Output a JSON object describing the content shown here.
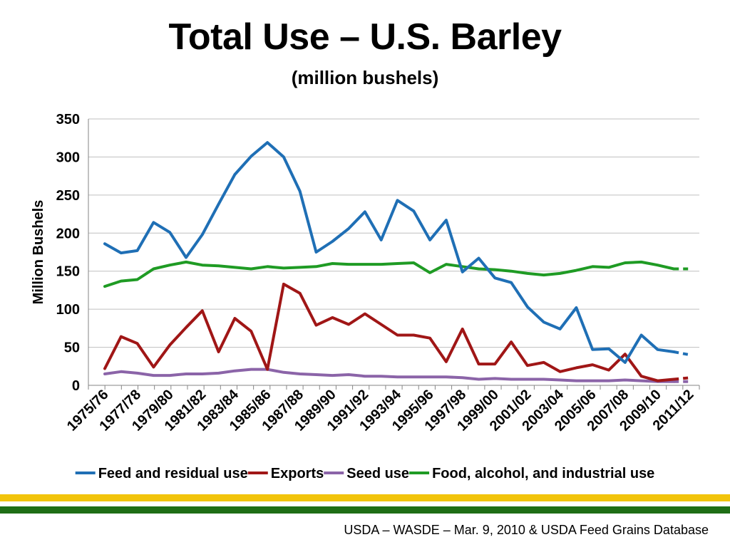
{
  "slide": {
    "title": "Total Use – U.S. Barley",
    "subtitle": "(million bushels)",
    "source": "USDA – WASDE – Mar. 9, 2010 & USDA Feed Grains Database"
  },
  "colors": {
    "feed": "#1f6fb5",
    "exports": "#a01616",
    "seed": "#8b64a8",
    "food": "#1f9b24",
    "grid": "#bfbfbf",
    "band_yellow": "#f2c40b",
    "band_green": "#1f6e16"
  },
  "chart_data": {
    "type": "line",
    "title": "Total Use – U.S. Barley",
    "subtitle": "(million bushels)",
    "xlabel": "",
    "ylabel": "Million Bushels",
    "ylim": [
      0,
      350
    ],
    "yticks": [
      0,
      50,
      100,
      150,
      200,
      250,
      300,
      350
    ],
    "grid": true,
    "legend": "bottom",
    "categories": [
      "1975/76",
      "1976/77",
      "1977/78",
      "1978/79",
      "1979/80",
      "1980/81",
      "1981/82",
      "1982/83",
      "1983/84",
      "1984/85",
      "1985/86",
      "1986/87",
      "1987/88",
      "1988/89",
      "1989/90",
      "1990/91",
      "1991/92",
      "1992/93",
      "1993/94",
      "1994/95",
      "1995/96",
      "1996/97",
      "1997/98",
      "1998/99",
      "1999/00",
      "2000/01",
      "2001/02",
      "2002/03",
      "2003/04",
      "2004/05",
      "2005/06",
      "2006/07",
      "2007/08",
      "2008/09",
      "2009/10",
      "2010/11",
      "2011/12"
    ],
    "tick_labels": [
      "1975/76",
      "1977/78",
      "1979/80",
      "1981/82",
      "1983/84",
      "1985/86",
      "1987/88",
      "1989/90",
      "1991/92",
      "1993/94",
      "1995/96",
      "1997/98",
      "1999/00",
      "2001/02",
      "2003/04",
      "2005/06",
      "2007/08",
      "2009/10",
      "2011/12"
    ],
    "projected_from": "2010/11",
    "series": [
      {
        "name": "Feed and residual use",
        "color": "#1f6fb5",
        "values": [
          186,
          174,
          177,
          214,
          201,
          168,
          198,
          238,
          277,
          301,
          319,
          300,
          255,
          175,
          189,
          206,
          228,
          191,
          243,
          229,
          191,
          217,
          149,
          167,
          141,
          135,
          103,
          83,
          74,
          102,
          47,
          48,
          30,
          66,
          47,
          44,
          40
        ]
      },
      {
        "name": "Exports",
        "color": "#a01616",
        "values": [
          22,
          64,
          55,
          24,
          53,
          76,
          98,
          44,
          88,
          71,
          21,
          133,
          121,
          79,
          89,
          80,
          94,
          80,
          66,
          66,
          62,
          31,
          74,
          28,
          28,
          57,
          26,
          30,
          18,
          23,
          27,
          20,
          41,
          12,
          6,
          8,
          10
        ]
      },
      {
        "name": "Seed use",
        "color": "#8b64a8",
        "values": [
          15,
          18,
          16,
          13,
          13,
          15,
          15,
          16,
          19,
          21,
          21,
          17,
          15,
          14,
          13,
          14,
          12,
          12,
          11,
          11,
          11,
          11,
          10,
          8,
          9,
          8,
          8,
          8,
          7,
          6,
          6,
          6,
          7,
          6,
          5,
          5,
          5
        ]
      },
      {
        "name": "Food, alcohol, and industrial use",
        "color": "#1f9b24",
        "values": [
          130,
          137,
          139,
          153,
          158,
          162,
          158,
          157,
          155,
          153,
          156,
          154,
          155,
          156,
          160,
          159,
          159,
          159,
          160,
          161,
          148,
          159,
          156,
          153,
          152,
          150,
          147,
          145,
          147,
          151,
          156,
          155,
          161,
          162,
          158,
          153,
          153
        ]
      }
    ]
  }
}
